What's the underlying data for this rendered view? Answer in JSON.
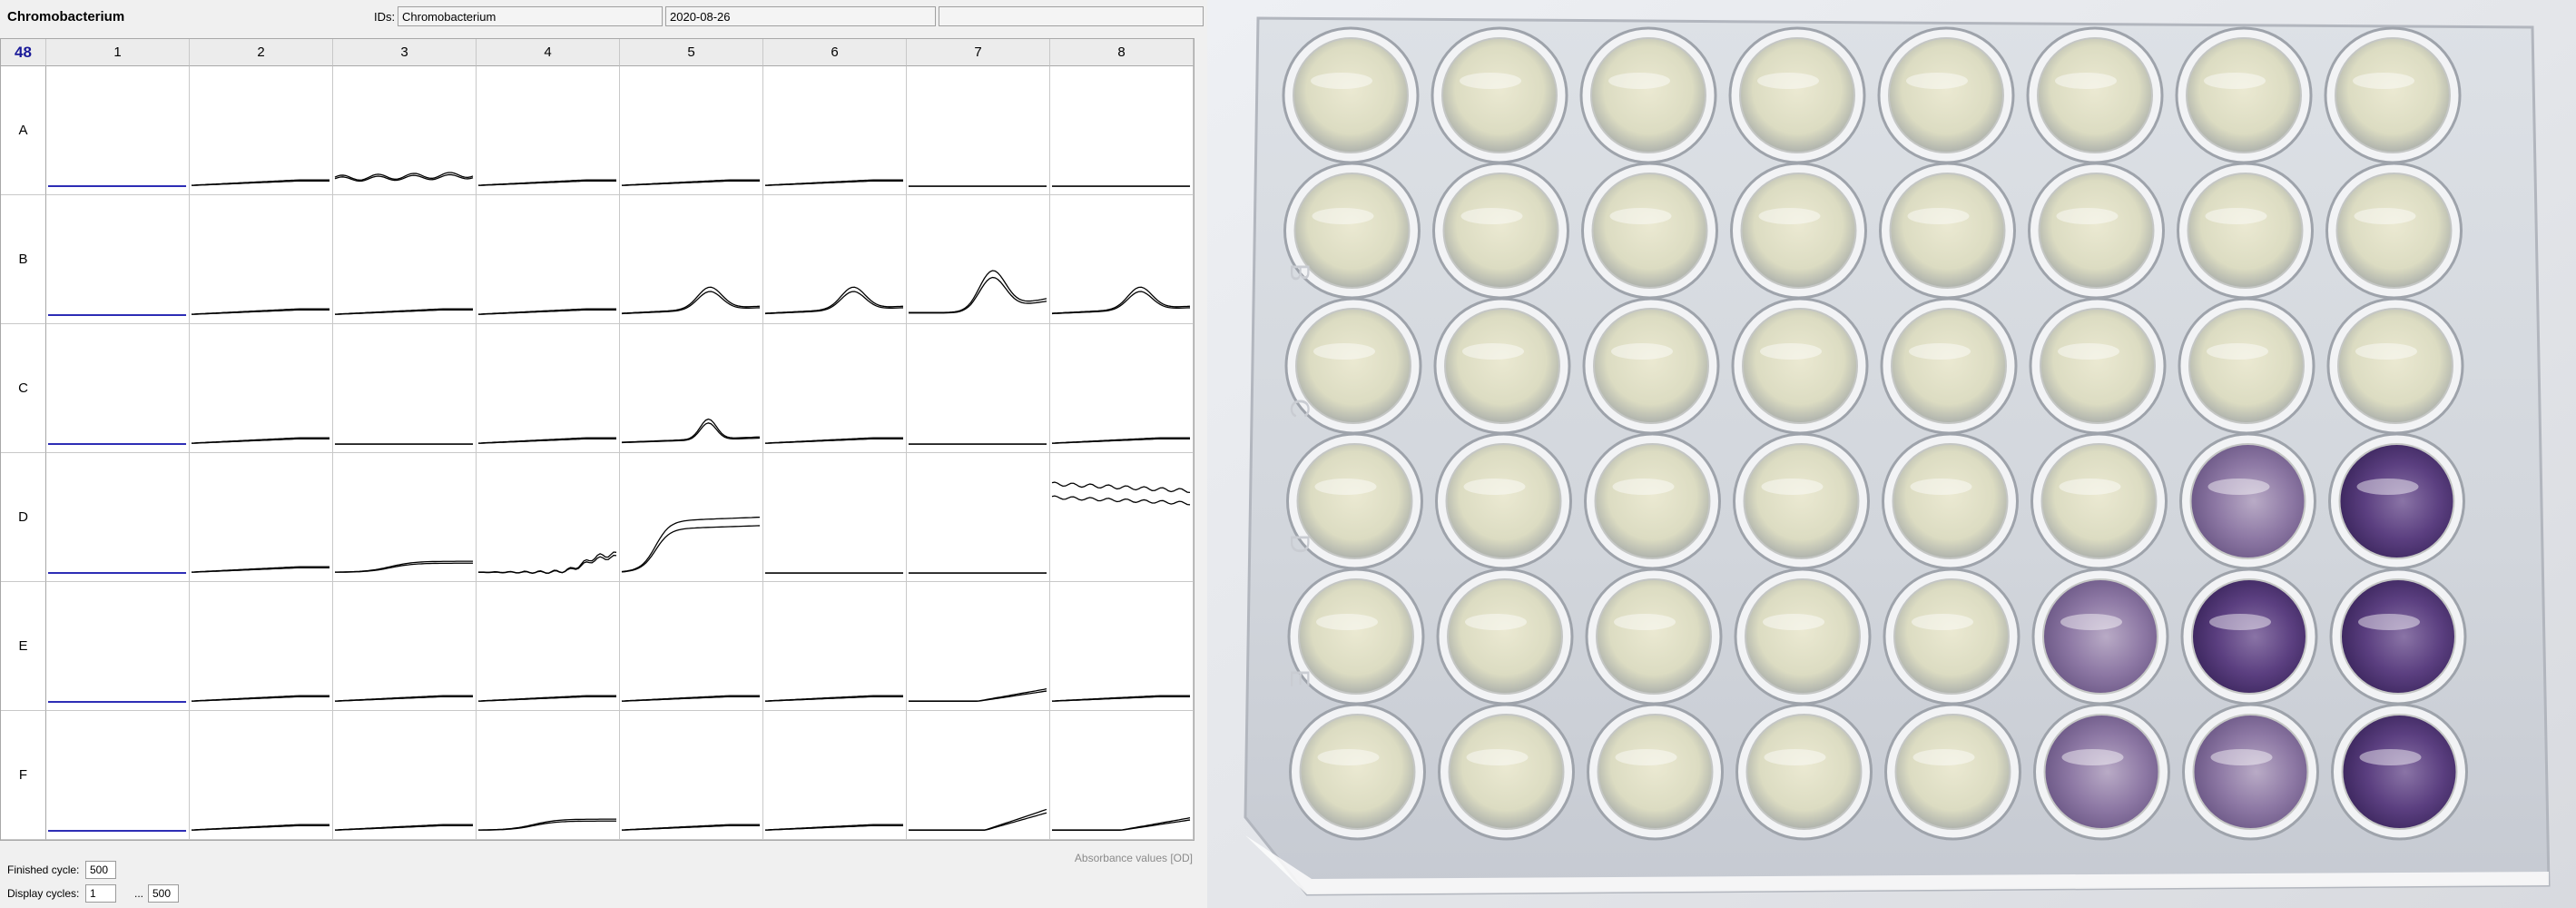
{
  "window": {
    "title": "Chromobacterium"
  },
  "ids": {
    "label": "IDs:",
    "field1": "Chromobacterium",
    "field2": "2020-08-26",
    "field3": ""
  },
  "plate": {
    "count": "48",
    "columns": [
      "1",
      "2",
      "3",
      "4",
      "5",
      "6",
      "7",
      "8"
    ],
    "rows": [
      "A",
      "B",
      "C",
      "D",
      "E",
      "F"
    ]
  },
  "footer": {
    "units_note": "Absorbance values [OD]",
    "finished_label": "Finished cycle:",
    "finished_value": "500",
    "display_label": "Display cycles:",
    "display_from": "1",
    "range_sep": "...",
    "display_to": "500"
  },
  "photo": {
    "plate_letters": [
      "B",
      "C",
      "D",
      "E"
    ]
  },
  "colors": {
    "blank_curve": "#2a2ab4",
    "curve": "#000000",
    "purple_well": "#4a2a6a",
    "pale_well": "#e6e4cc"
  }
}
